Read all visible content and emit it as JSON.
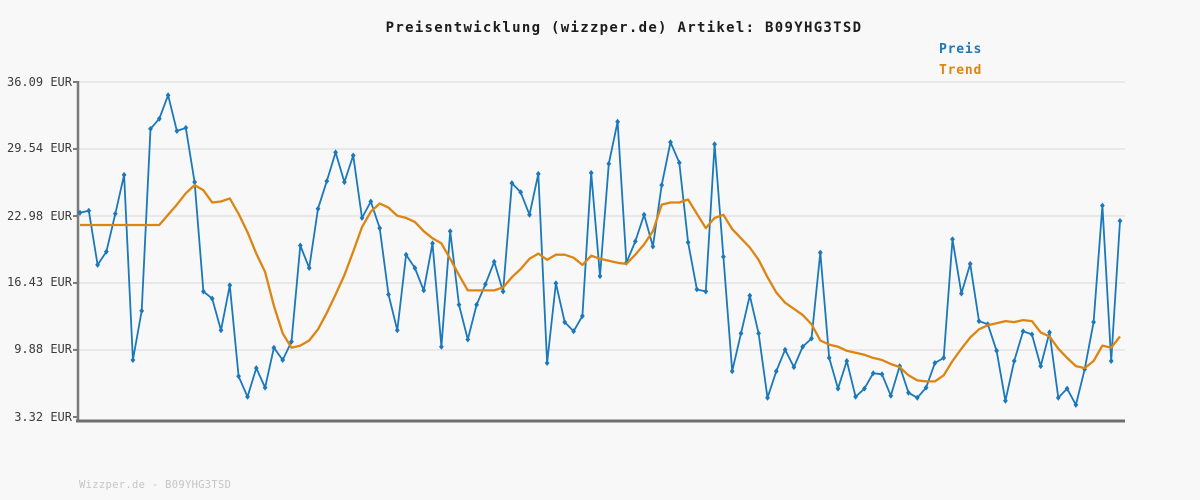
{
  "title": "Preisentwicklung (wizzper.de) Artikel: B09YHG3TSD",
  "footer": "Wizzper.de - B09YHG3TSD",
  "colors": {
    "background": "#f8f8f8",
    "price": "#1a78bb",
    "trend": "#dd8512",
    "grid": "#e3e3e3",
    "axis": "#7b7b7b",
    "title_text": "#1c1c1c",
    "tick_text": "#3c3c3c",
    "footer_text": "#c5c5c5"
  },
  "legend": {
    "position": "top-right",
    "items": [
      {
        "label": "Preis",
        "color": "#1a78bb"
      },
      {
        "label": "Trend",
        "color": "#dd8512"
      }
    ]
  },
  "chart_data": {
    "type": "line",
    "title": "Preisentwicklung (wizzper.de) Artikel: B09YHG3TSD",
    "currency": "EUR",
    "xlabel": "",
    "ylabel": "",
    "x_tick_labels": [],
    "grid": "horizontal",
    "ylim": [
      3.32,
      36.09
    ],
    "y_ticks": [
      {
        "value": 36.09,
        "label": "36.09 EUR"
      },
      {
        "value": 29.54,
        "label": "29.54 EUR"
      },
      {
        "value": 22.98,
        "label": "22.98 EUR"
      },
      {
        "value": 16.43,
        "label": "16.43 EUR"
      },
      {
        "value": 9.88,
        "label": "9.88 EUR"
      },
      {
        "value": 3.32,
        "label": "3.32 EUR"
      }
    ],
    "series": [
      {
        "name": "Preis",
        "color": "#1a78bb",
        "marker": "diamond",
        "values": [
          23.3,
          23.5,
          18.2,
          19.5,
          23.2,
          27.0,
          8.9,
          13.7,
          31.5,
          32.5,
          34.8,
          31.3,
          31.6,
          26.3,
          15.6,
          14.9,
          11.8,
          16.2,
          7.3,
          5.3,
          8.1,
          6.2,
          10.1,
          8.9,
          10.7,
          20.1,
          17.9,
          23.7,
          26.4,
          29.2,
          26.3,
          28.9,
          22.8,
          24.4,
          21.8,
          15.3,
          11.8,
          19.2,
          17.9,
          15.7,
          20.3,
          10.2,
          21.5,
          14.3,
          10.9,
          14.3,
          16.3,
          18.5,
          15.6,
          26.2,
          25.3,
          23.1,
          27.1,
          8.6,
          16.4,
          12.6,
          11.7,
          13.2,
          27.2,
          17.1,
          28.1,
          32.2,
          18.4,
          20.5,
          23.1,
          20.0,
          26.0,
          30.2,
          28.2,
          20.4,
          15.8,
          15.6,
          30.0,
          19.0,
          7.8,
          11.5,
          15.2,
          11.5,
          5.2,
          7.8,
          9.9,
          8.2,
          10.2,
          11.0,
          19.4,
          9.1,
          6.1,
          8.8,
          5.3,
          6.1,
          7.6,
          7.5,
          5.4,
          8.3,
          5.7,
          5.2,
          6.2,
          8.6,
          9.1,
          20.7,
          15.4,
          18.3,
          12.7,
          12.4,
          9.8,
          4.9,
          8.8,
          11.7,
          11.4,
          8.3,
          11.6,
          5.2,
          6.1,
          4.5,
          8.0,
          12.6,
          24.0,
          8.8,
          22.5
        ]
      },
      {
        "name": "Trend",
        "color": "#dd8512",
        "marker": "none",
        "values": [
          22.1,
          22.1,
          22.1,
          22.1,
          22.1,
          22.1,
          22.1,
          22.1,
          22.1,
          22.1,
          23.1,
          24.1,
          25.2,
          26.0,
          25.5,
          24.3,
          24.4,
          24.7,
          23.2,
          21.4,
          19.3,
          17.5,
          14.2,
          11.5,
          10.1,
          10.3,
          10.8,
          11.9,
          13.5,
          15.3,
          17.2,
          19.5,
          21.9,
          23.4,
          24.2,
          23.8,
          23.0,
          22.8,
          22.4,
          21.5,
          20.8,
          20.3,
          18.8,
          17.2,
          15.7,
          15.7,
          15.7,
          15.7,
          16.0,
          17.0,
          17.8,
          18.8,
          19.3,
          18.7,
          19.2,
          19.2,
          18.9,
          18.2,
          19.1,
          18.8,
          18.6,
          18.4,
          18.3,
          19.2,
          20.2,
          21.5,
          24.1,
          24.3,
          24.3,
          24.6,
          23.2,
          21.8,
          22.8,
          23.1,
          21.7,
          20.8,
          19.9,
          18.7,
          17.0,
          15.5,
          14.5,
          13.9,
          13.3,
          12.4,
          10.8,
          10.4,
          10.2,
          9.8,
          9.6,
          9.4,
          9.1,
          8.9,
          8.5,
          8.2,
          7.4,
          6.9,
          6.8,
          6.8,
          7.4,
          8.8,
          10.0,
          11.1,
          11.9,
          12.3,
          12.5,
          12.7,
          12.6,
          12.8,
          12.7,
          11.6,
          11.2,
          10.0,
          9.1,
          8.3,
          8.1,
          8.8,
          10.3,
          10.1,
          11.2
        ]
      }
    ]
  }
}
